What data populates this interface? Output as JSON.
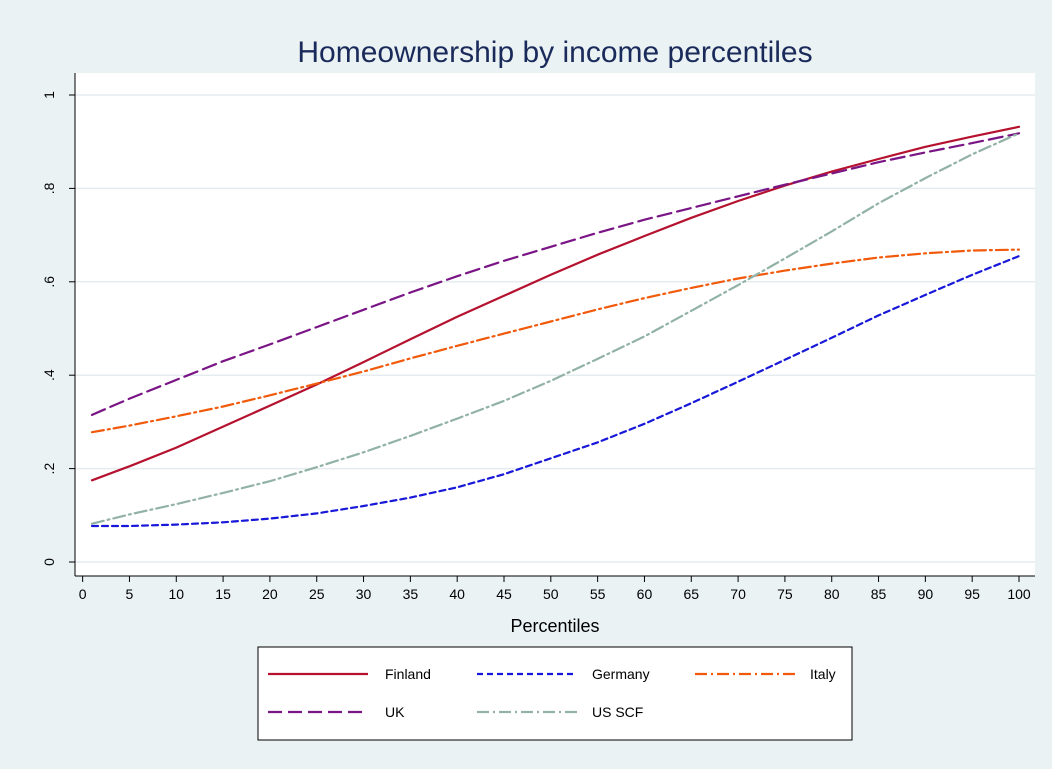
{
  "chart_data": {
    "type": "line",
    "title": "Homeownership by income percentiles",
    "xlabel": "Percentiles",
    "ylabel": "",
    "xlim": [
      1,
      100
    ],
    "ylim": [
      0,
      1
    ],
    "x_ticks": [
      0,
      5,
      10,
      15,
      20,
      25,
      30,
      35,
      40,
      45,
      50,
      55,
      60,
      65,
      70,
      75,
      80,
      85,
      90,
      95,
      100
    ],
    "y_ticks": [
      0,
      0.2,
      0.4,
      0.6,
      0.8,
      1
    ],
    "y_tick_labels": [
      "0",
      ".2",
      ".4",
      ".6",
      ".8",
      "1"
    ],
    "grid": true,
    "legend_position": "bottom",
    "x": [
      1,
      5,
      10,
      15,
      20,
      25,
      30,
      35,
      40,
      45,
      50,
      55,
      60,
      65,
      70,
      75,
      80,
      85,
      90,
      95,
      100
    ],
    "series": [
      {
        "name": "Finland",
        "color": "#b5122f",
        "dash": "solid",
        "values": [
          0.175,
          0.205,
          0.245,
          0.29,
          0.335,
          0.38,
          0.428,
          0.477,
          0.525,
          0.57,
          0.615,
          0.658,
          0.698,
          0.737,
          0.773,
          0.806,
          0.836,
          0.863,
          0.889,
          0.911,
          0.932
        ]
      },
      {
        "name": "Germany",
        "color": "#1818d8",
        "dash": "short",
        "values": [
          0.077,
          0.077,
          0.08,
          0.085,
          0.093,
          0.104,
          0.12,
          0.138,
          0.16,
          0.188,
          0.222,
          0.256,
          0.296,
          0.34,
          0.386,
          0.433,
          0.48,
          0.528,
          0.572,
          0.615,
          0.655
        ]
      },
      {
        "name": "Italy",
        "color": "#f05a0a",
        "dash": "dashdot",
        "values": [
          0.278,
          0.292,
          0.312,
          0.333,
          0.357,
          0.382,
          0.408,
          0.436,
          0.463,
          0.489,
          0.515,
          0.541,
          0.565,
          0.587,
          0.607,
          0.624,
          0.639,
          0.652,
          0.661,
          0.667,
          0.669
        ]
      },
      {
        "name": "UK",
        "color": "#7a1585",
        "dash": "long",
        "values": [
          0.315,
          0.35,
          0.39,
          0.43,
          0.466,
          0.503,
          0.54,
          0.577,
          0.612,
          0.645,
          0.675,
          0.705,
          0.733,
          0.758,
          0.783,
          0.808,
          0.832,
          0.856,
          0.877,
          0.897,
          0.918
        ]
      },
      {
        "name": "US SCF",
        "color": "#92b2a6",
        "dash": "dashdot",
        "values": [
          0.082,
          0.102,
          0.124,
          0.148,
          0.173,
          0.203,
          0.235,
          0.27,
          0.307,
          0.345,
          0.388,
          0.435,
          0.483,
          0.538,
          0.593,
          0.65,
          0.708,
          0.768,
          0.822,
          0.873,
          0.918
        ]
      }
    ]
  }
}
